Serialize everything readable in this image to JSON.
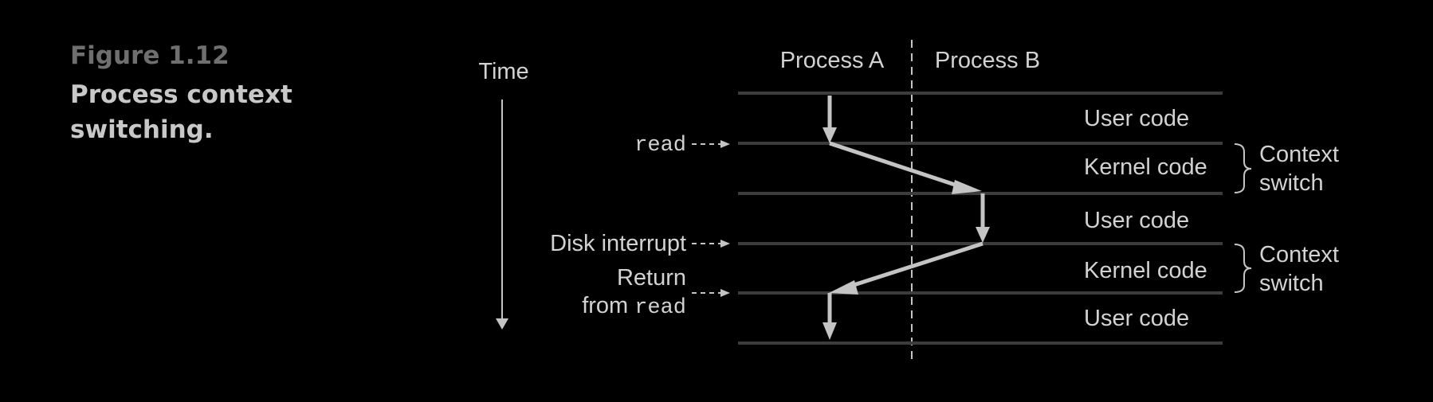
{
  "caption": {
    "number": "Figure 1.12",
    "title": "Process context switching."
  },
  "diagram": {
    "time_label": "Time",
    "columns": {
      "a": "Process A",
      "b": "Process B"
    },
    "regions": [
      "User code",
      "Kernel code",
      "User code",
      "Kernel code",
      "User code"
    ],
    "context_switch_labels": [
      {
        "line1": "Context",
        "line2": "switch"
      },
      {
        "line1": "Context",
        "line2": "switch"
      }
    ],
    "events": {
      "read": "read",
      "disk_interrupt": "Disk interrupt",
      "return_line1": "Return",
      "return_from": "from",
      "return_read": "read"
    }
  },
  "colors": {
    "background": "#000000",
    "rule": "#3c3c3c",
    "arrow": "#c4c4c4",
    "text": "#d2d2d2",
    "caption_number": "#6f6f6f",
    "caption_title": "#c8c8c8"
  }
}
